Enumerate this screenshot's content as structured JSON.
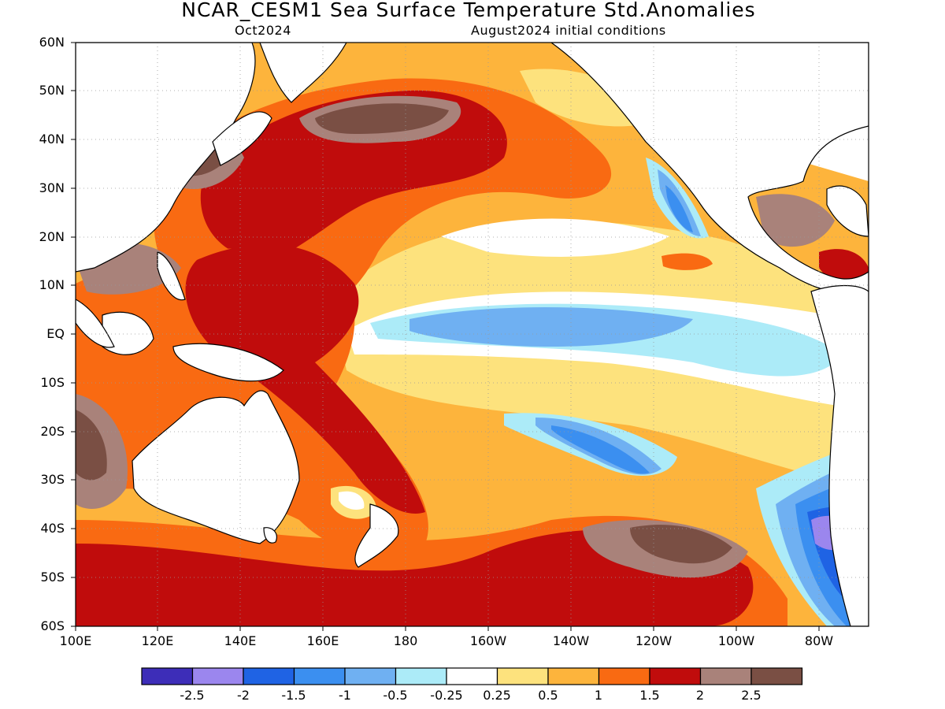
{
  "title": "NCAR_CESM1 Sea Surface Temperature Std.Anomalies",
  "subtitle_left": "Oct2024",
  "subtitle_right": "August2024 initial conditions",
  "map": {
    "region": "Pacific Ocean",
    "lon_range": [
      "100E",
      "70W"
    ],
    "lat_range": [
      "60S",
      "60N"
    ],
    "gridlines": "dotted",
    "lat_labels": [
      "60N",
      "50N",
      "40N",
      "30N",
      "20N",
      "10N",
      "EQ",
      "10S",
      "20S",
      "30S",
      "40S",
      "50S",
      "60S"
    ],
    "lon_labels": [
      "100E",
      "120E",
      "140E",
      "160E",
      "180",
      "160W",
      "140W",
      "120W",
      "100W",
      "80W"
    ]
  },
  "colorbar": {
    "labels": [
      "-2.5",
      "-2",
      "-1.5",
      "-1",
      "-0.5",
      "-0.25",
      "0.25",
      "0.5",
      "1",
      "1.5",
      "2",
      "2.5"
    ],
    "colors": [
      "#3d2db8",
      "#9b86ee",
      "#1f63e4",
      "#3b8ff0",
      "#6fb0f2",
      "#acebf8",
      "#ffffff",
      "#fde27d",
      "#fdb43c",
      "#f96a12",
      "#c00c0c",
      "#a9827a",
      "#7a4f44"
    ]
  },
  "chart_data": {
    "type": "heatmap",
    "title": "NCAR_CESM1 Sea Surface Temperature Std.Anomalies",
    "subtitle": [
      "Oct2024",
      "August2024 initial conditions"
    ],
    "x_ticks": [
      "100E",
      "120E",
      "140E",
      "160E",
      "180",
      "160W",
      "140W",
      "120W",
      "100W",
      "80W"
    ],
    "y_ticks": [
      "60N",
      "50N",
      "40N",
      "30N",
      "20N",
      "10N",
      "EQ",
      "10S",
      "20S",
      "30S",
      "40S",
      "50S",
      "60S"
    ],
    "legend": {
      "placement": "bottom",
      "bins": [
        {
          "max": -2.5,
          "color": "#3d2db8"
        },
        {
          "min": -2.5,
          "max": -2,
          "color": "#9b86ee"
        },
        {
          "min": -2,
          "max": -1.5,
          "color": "#1f63e4"
        },
        {
          "min": -1.5,
          "max": -1,
          "color": "#3b8ff0"
        },
        {
          "min": -1,
          "max": -0.5,
          "color": "#6fb0f2"
        },
        {
          "min": -0.5,
          "max": -0.25,
          "color": "#acebf8"
        },
        {
          "min": -0.25,
          "max": 0.25,
          "color": "#ffffff"
        },
        {
          "min": 0.25,
          "max": 0.5,
          "color": "#fde27d"
        },
        {
          "min": 0.5,
          "max": 1,
          "color": "#fdb43c"
        },
        {
          "min": 1,
          "max": 1.5,
          "color": "#f96a12"
        },
        {
          "min": 1.5,
          "max": 2,
          "color": "#c00c0c"
        },
        {
          "min": 2,
          "max": 2.5,
          "color": "#a9827a"
        },
        {
          "min": 2.5,
          "color": "#7a4f44"
        }
      ]
    },
    "grid": true
  }
}
